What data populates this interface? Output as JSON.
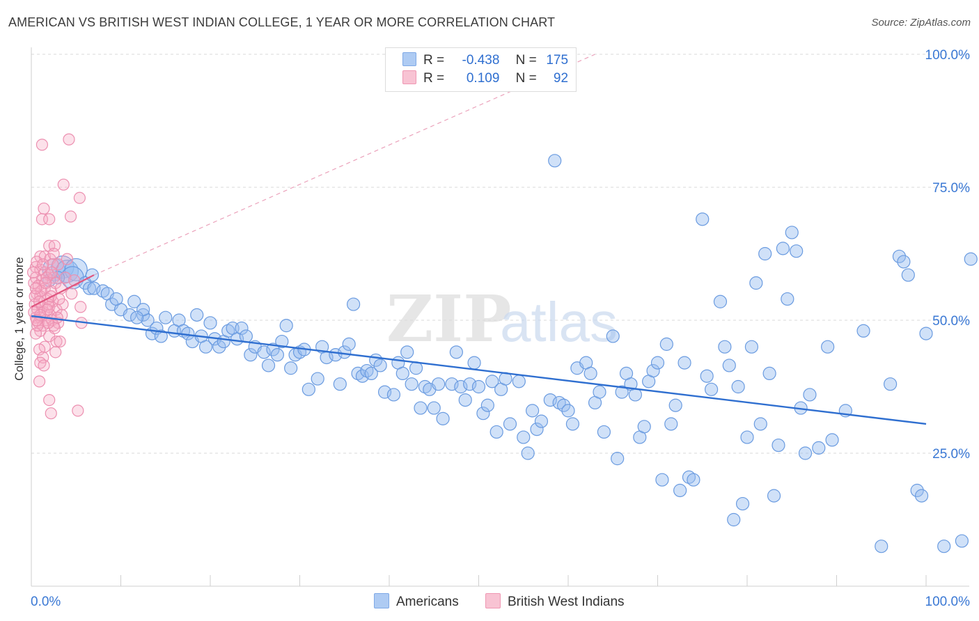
{
  "title": "AMERICAN VS BRITISH WEST INDIAN COLLEGE, 1 YEAR OR MORE CORRELATION CHART",
  "source": "Source: ZipAtlas.com",
  "watermark": {
    "zip": "ZIP",
    "atlas": "atlas"
  },
  "legend": {
    "r_label": "R =",
    "n_label": "N =",
    "rows": [
      {
        "series": "Americans",
        "r": "-0.438",
        "n": "175",
        "color": "#aecbf3"
      },
      {
        "series": "British West Indians",
        "r": "0.109",
        "n": "92",
        "color": "#f8c3d3"
      }
    ]
  },
  "chart_data": {
    "type": "scatter",
    "title": "AMERICAN VS BRITISH WEST INDIAN COLLEGE, 1 YEAR OR MORE CORRELATION CHART",
    "xlabel": "",
    "ylabel": "College, 1 year or more",
    "xlim": [
      0,
      100
    ],
    "ylim": [
      0,
      100
    ],
    "x_tick_labels": [
      "0.0%",
      "100.0%"
    ],
    "y_tick_labels": [
      "25.0%",
      "50.0%",
      "75.0%",
      "100.0%"
    ],
    "y_ticks": [
      25,
      50,
      75,
      100
    ],
    "grid": true,
    "legend_position": "top-center",
    "colors": {
      "americans": "#6a9be0",
      "americans_line": "#2f6fd0",
      "bwi": "#ec8fb0",
      "bwi_line": "#e0557f"
    },
    "series": [
      {
        "name": "Americans",
        "trend": {
          "x": [
            0,
            100
          ],
          "y": [
            50.8,
            30.5
          ]
        },
        "points": [
          [
            2.5,
            59.5
          ],
          [
            3.5,
            60.0
          ],
          [
            4.0,
            59.2
          ],
          [
            5.0,
            59.5
          ],
          [
            4.6,
            58.0
          ],
          [
            6.0,
            57.0
          ],
          [
            6.5,
            56.0
          ],
          [
            7.0,
            56.0
          ],
          [
            8.0,
            55.5
          ],
          [
            8.5,
            55.0
          ],
          [
            9.0,
            53.0
          ],
          [
            10.0,
            52.0
          ],
          [
            11.0,
            51.0
          ],
          [
            11.5,
            53.5
          ],
          [
            12.5,
            51.0
          ],
          [
            13.0,
            50.0
          ],
          [
            12.5,
            52.0
          ],
          [
            13.5,
            47.5
          ],
          [
            14.0,
            48.5
          ],
          [
            14.5,
            47.0
          ],
          [
            15.0,
            50.5
          ],
          [
            16.0,
            48.0
          ],
          [
            16.5,
            50.0
          ],
          [
            17.0,
            48.0
          ],
          [
            17.5,
            47.5
          ],
          [
            18.0,
            46.0
          ],
          [
            18.5,
            51.0
          ],
          [
            19.0,
            47.0
          ],
          [
            19.5,
            45.0
          ],
          [
            20.0,
            49.5
          ],
          [
            20.5,
            46.5
          ],
          [
            21.0,
            45.0
          ],
          [
            21.5,
            46.0
          ],
          [
            22.0,
            48.0
          ],
          [
            22.5,
            48.5
          ],
          [
            23.0,
            46.5
          ],
          [
            23.5,
            48.5
          ],
          [
            24.0,
            47.0
          ],
          [
            24.5,
            43.5
          ],
          [
            25.0,
            45.0
          ],
          [
            26.0,
            44.0
          ],
          [
            26.5,
            41.5
          ],
          [
            27.0,
            44.5
          ],
          [
            27.5,
            43.5
          ],
          [
            28.0,
            46.0
          ],
          [
            28.5,
            49.0
          ],
          [
            29.0,
            41.0
          ],
          [
            29.5,
            43.5
          ],
          [
            30.0,
            44.0
          ],
          [
            30.5,
            44.5
          ],
          [
            31.0,
            37.0
          ],
          [
            32.0,
            39.0
          ],
          [
            32.5,
            45.0
          ],
          [
            33.0,
            43.0
          ],
          [
            34.0,
            43.5
          ],
          [
            34.5,
            38.0
          ],
          [
            35.0,
            44.0
          ],
          [
            35.5,
            45.5
          ],
          [
            36.0,
            53.0
          ],
          [
            36.5,
            40.0
          ],
          [
            37.0,
            39.5
          ],
          [
            37.5,
            40.5
          ],
          [
            38.0,
            40.0
          ],
          [
            38.5,
            42.5
          ],
          [
            39.0,
            41.5
          ],
          [
            39.5,
            36.5
          ],
          [
            40.5,
            36.0
          ],
          [
            41.0,
            42.0
          ],
          [
            41.5,
            40.0
          ],
          [
            42.0,
            44.0
          ],
          [
            42.5,
            38.0
          ],
          [
            43.0,
            41.0
          ],
          [
            43.5,
            33.5
          ],
          [
            44.0,
            37.5
          ],
          [
            44.5,
            37.0
          ],
          [
            45.0,
            33.5
          ],
          [
            45.5,
            38.0
          ],
          [
            46.0,
            31.5
          ],
          [
            47.0,
            38.0
          ],
          [
            47.5,
            44.0
          ],
          [
            48.0,
            37.5
          ],
          [
            48.5,
            35.0
          ],
          [
            49.0,
            38.0
          ],
          [
            49.5,
            42.0
          ],
          [
            50.0,
            37.5
          ],
          [
            50.5,
            32.5
          ],
          [
            51.0,
            34.0
          ],
          [
            51.5,
            38.5
          ],
          [
            52.0,
            29.0
          ],
          [
            52.5,
            37.0
          ],
          [
            53.0,
            39.0
          ],
          [
            53.5,
            30.5
          ],
          [
            54.5,
            38.5
          ],
          [
            55.0,
            28.0
          ],
          [
            55.5,
            25.0
          ],
          [
            56.0,
            33.0
          ],
          [
            56.5,
            29.5
          ],
          [
            57.0,
            31.0
          ],
          [
            58.0,
            35.0
          ],
          [
            58.5,
            80.0
          ],
          [
            59.0,
            34.5
          ],
          [
            59.5,
            34.0
          ],
          [
            60.0,
            33.0
          ],
          [
            60.5,
            30.5
          ],
          [
            61.0,
            41.0
          ],
          [
            62.0,
            42.0
          ],
          [
            62.5,
            40.0
          ],
          [
            63.0,
            34.5
          ],
          [
            63.5,
            36.5
          ],
          [
            64.0,
            29.0
          ],
          [
            65.0,
            47.0
          ],
          [
            65.5,
            24.0
          ],
          [
            66.0,
            36.5
          ],
          [
            66.5,
            40.0
          ],
          [
            67.0,
            38.0
          ],
          [
            67.5,
            36.0
          ],
          [
            68.0,
            28.0
          ],
          [
            68.5,
            30.0
          ],
          [
            69.0,
            38.5
          ],
          [
            69.5,
            40.5
          ],
          [
            70.0,
            42.0
          ],
          [
            70.5,
            20.0
          ],
          [
            71.0,
            45.5
          ],
          [
            71.5,
            30.5
          ],
          [
            72.0,
            34.0
          ],
          [
            72.5,
            18.0
          ],
          [
            73.0,
            42.0
          ],
          [
            73.5,
            20.5
          ],
          [
            74.0,
            20.0
          ],
          [
            75.0,
            69.0
          ],
          [
            75.5,
            39.5
          ],
          [
            76.0,
            37.0
          ],
          [
            77.0,
            53.5
          ],
          [
            77.5,
            45.0
          ],
          [
            78.0,
            41.5
          ],
          [
            78.5,
            12.5
          ],
          [
            79.0,
            37.5
          ],
          [
            79.5,
            15.5
          ],
          [
            80.0,
            28.0
          ],
          [
            80.5,
            45.0
          ],
          [
            81.0,
            57.0
          ],
          [
            81.5,
            30.5
          ],
          [
            82.0,
            62.5
          ],
          [
            82.5,
            40.0
          ],
          [
            83.0,
            17.0
          ],
          [
            83.5,
            26.5
          ],
          [
            84.0,
            63.5
          ],
          [
            84.5,
            54.0
          ],
          [
            85.0,
            66.5
          ],
          [
            85.5,
            63.0
          ],
          [
            86.0,
            33.5
          ],
          [
            86.5,
            25.0
          ],
          [
            87.0,
            36.0
          ],
          [
            88.0,
            26.0
          ],
          [
            89.0,
            45.0
          ],
          [
            89.5,
            27.5
          ],
          [
            91.0,
            33.0
          ],
          [
            93.0,
            48.0
          ],
          [
            95.0,
            7.5
          ],
          [
            96.0,
            38.0
          ],
          [
            97.0,
            62.0
          ],
          [
            97.5,
            61.0
          ],
          [
            98.0,
            58.5
          ],
          [
            99.0,
            18.0
          ],
          [
            99.5,
            17.0
          ],
          [
            100.0,
            47.5
          ],
          [
            102.0,
            7.5
          ],
          [
            104.0,
            8.5
          ],
          [
            105.0,
            61.5
          ],
          [
            3.0,
            58.0
          ],
          [
            2.0,
            57.5
          ],
          [
            6.8,
            58.5
          ],
          [
            9.5,
            54.0
          ],
          [
            11.8,
            50.5
          ]
        ]
      },
      {
        "name": "British West Indians",
        "trend": {
          "x": [
            0,
            7
          ],
          "y": [
            52.5,
            58.5
          ]
        },
        "trend_extended": {
          "x": [
            7,
            63
          ],
          "y": [
            58.5,
            100
          ]
        },
        "points": [
          [
            1.2,
            83.0
          ],
          [
            4.2,
            84.0
          ],
          [
            3.6,
            75.5
          ],
          [
            5.4,
            73.0
          ],
          [
            1.4,
            71.0
          ],
          [
            4.4,
            69.5
          ],
          [
            1.2,
            69.0
          ],
          [
            2.0,
            69.0
          ],
          [
            2.0,
            64.0
          ],
          [
            2.6,
            64.0
          ],
          [
            1.0,
            62.0
          ],
          [
            1.5,
            62.0
          ],
          [
            2.1,
            61.5
          ],
          [
            4.0,
            61.5
          ],
          [
            3.0,
            60.5
          ],
          [
            0.5,
            60.0
          ],
          [
            1.0,
            59.5
          ],
          [
            1.5,
            59.0
          ],
          [
            2.0,
            58.5
          ],
          [
            2.5,
            58.0
          ],
          [
            0.5,
            58.0
          ],
          [
            1.2,
            57.5
          ],
          [
            0.3,
            57.0
          ],
          [
            0.8,
            56.5
          ],
          [
            1.5,
            56.0
          ],
          [
            2.2,
            55.5
          ],
          [
            0.6,
            55.0
          ],
          [
            1.0,
            54.5
          ],
          [
            1.8,
            54.0
          ],
          [
            2.4,
            53.5
          ],
          [
            0.4,
            53.0
          ],
          [
            1.2,
            52.5
          ],
          [
            2.0,
            52.5
          ],
          [
            2.8,
            52.0
          ],
          [
            0.7,
            52.0
          ],
          [
            1.4,
            51.5
          ],
          [
            2.1,
            51.0
          ],
          [
            3.4,
            51.0
          ],
          [
            0.5,
            50.5
          ],
          [
            1.0,
            50.5
          ],
          [
            1.6,
            50.0
          ],
          [
            2.3,
            50.0
          ],
          [
            3.0,
            49.5
          ],
          [
            0.8,
            49.5
          ],
          [
            1.3,
            49.0
          ],
          [
            2.5,
            49.0
          ],
          [
            5.6,
            49.5
          ],
          [
            3.5,
            53.0
          ],
          [
            5.5,
            52.5
          ],
          [
            1.0,
            48.0
          ],
          [
            0.5,
            47.5
          ],
          [
            2.0,
            47.0
          ],
          [
            2.8,
            46.0
          ],
          [
            1.5,
            45.0
          ],
          [
            0.9,
            44.5
          ],
          [
            2.7,
            44.0
          ],
          [
            1.3,
            43.0
          ],
          [
            1.0,
            42.0
          ],
          [
            1.4,
            41.5
          ],
          [
            0.9,
            38.5
          ],
          [
            2.0,
            35.0
          ],
          [
            5.2,
            33.0
          ],
          [
            2.2,
            32.5
          ],
          [
            3.2,
            46.0
          ],
          [
            0.2,
            59.0
          ],
          [
            0.6,
            61.0
          ],
          [
            2.7,
            57.0
          ],
          [
            1.9,
            53.0
          ],
          [
            0.3,
            51.5
          ],
          [
            1.1,
            55.5
          ],
          [
            2.4,
            60.5
          ],
          [
            3.3,
            56.0
          ],
          [
            0.4,
            54.5
          ],
          [
            1.7,
            58.0
          ],
          [
            2.9,
            50.5
          ],
          [
            0.7,
            49.0
          ],
          [
            1.8,
            52.0
          ],
          [
            2.2,
            54.5
          ],
          [
            1.3,
            60.5
          ],
          [
            0.5,
            56.0
          ],
          [
            3.8,
            58.0
          ],
          [
            4.5,
            55.0
          ],
          [
            1.0,
            51.0
          ],
          [
            2.6,
            48.5
          ],
          [
            0.9,
            53.5
          ],
          [
            1.6,
            57.0
          ],
          [
            2.3,
            59.0
          ],
          [
            3.1,
            54.0
          ],
          [
            0.6,
            50.0
          ],
          [
            1.9,
            49.5
          ],
          [
            4.8,
            57.5
          ],
          [
            2.5,
            62.5
          ]
        ]
      }
    ]
  }
}
